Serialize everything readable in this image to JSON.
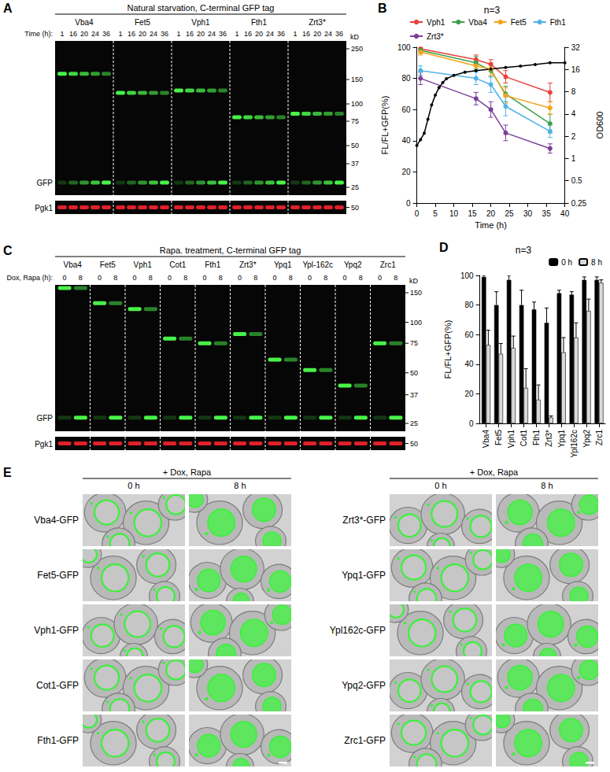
{
  "chart_data": [
    {
      "type": "line",
      "panel_label": "B",
      "title": "n=3",
      "x_label": "Time (h)",
      "y_label": "FL/FL+GFP(%)",
      "y2_label": "OD600",
      "xlim": [
        0,
        40
      ],
      "xticks": [
        0,
        5,
        10,
        15,
        20,
        25,
        30,
        35,
        40
      ],
      "ylim": [
        0,
        100
      ],
      "yticks": [
        0,
        20,
        40,
        60,
        80,
        100
      ],
      "y2lim": [
        0.25,
        32
      ],
      "y2ticks": [
        0.25,
        0.5,
        1,
        2,
        4,
        8,
        16,
        32
      ],
      "log": "y2",
      "grid": false,
      "legend": "top",
      "series": [
        {
          "name": "Vph1",
          "color": "#e8413a",
          "marker": "circle",
          "x": [
            1,
            16,
            20,
            24,
            36
          ],
          "values": [
            99,
            92,
            89,
            81,
            71
          ],
          "errors": [
            1,
            3,
            3,
            4,
            6
          ]
        },
        {
          "name": "Vba4",
          "color": "#3aa04a",
          "marker": "circle",
          "x": [
            1,
            16,
            20,
            24,
            36
          ],
          "values": [
            98,
            90,
            85,
            70,
            51
          ],
          "errors": [
            2,
            4,
            4,
            5,
            6
          ]
        },
        {
          "name": "Fet5",
          "color": "#f5a31a",
          "marker": "circle",
          "x": [
            1,
            16,
            20,
            24,
            36
          ],
          "values": [
            97,
            88,
            86,
            69,
            61
          ],
          "errors": [
            2,
            3,
            4,
            5,
            4
          ]
        },
        {
          "name": "Fth1",
          "color": "#4fb3e8",
          "marker": "circle",
          "x": [
            1,
            16,
            20,
            24,
            36
          ],
          "values": [
            85,
            80,
            76,
            62,
            46
          ],
          "errors": [
            3,
            4,
            5,
            6,
            4
          ]
        },
        {
          "name": "Zrt3*",
          "color": "#7b3f98",
          "marker": "circle",
          "x": [
            1,
            16,
            20,
            24,
            36
          ],
          "values": [
            80,
            67,
            60,
            45,
            35
          ],
          "errors": [
            4,
            4,
            5,
            5,
            3
          ]
        },
        {
          "name": "OD600",
          "color": "#000000",
          "marker": "circle",
          "axis": "y2",
          "x": [
            0,
            1,
            2,
            3,
            4,
            5,
            6,
            7,
            8,
            10,
            13,
            16,
            20,
            24,
            28,
            32,
            36,
            40
          ],
          "values": [
            1.5,
            1.8,
            2.2,
            3.4,
            5.3,
            7.2,
            9.1,
            10.6,
            12,
            13.3,
            14.7,
            15.4,
            16.2,
            17,
            17.8,
            18.7,
            19.7,
            19.7
          ]
        }
      ]
    },
    {
      "type": "bar",
      "panel_label": "D",
      "title": "n=3",
      "y_label": "FL/FL+GFP(%)",
      "categories": [
        "Vba4",
        "Fet5",
        "Vph1",
        "Cot1",
        "Fth1",
        "Zrt3*",
        "Ypq1",
        "Ypl162c",
        "Ypq2",
        "Zrc1"
      ],
      "ylim": [
        0,
        100
      ],
      "yticks": [
        0,
        20,
        40,
        60,
        80,
        100
      ],
      "grid": false,
      "legend": "top-right",
      "series": [
        {
          "name": "0 h",
          "color": "#000000",
          "values": [
            99,
            80,
            97,
            80,
            77,
            68,
            88,
            87,
            97,
            97
          ],
          "errors": [
            1,
            9,
            3,
            10,
            5,
            10,
            2,
            2,
            2,
            2
          ]
        },
        {
          "name": "8 h",
          "color": "#d9d9d9",
          "values": [
            53,
            47,
            51,
            24,
            16,
            4,
            48,
            58,
            76,
            95
          ],
          "errors": [
            10,
            7,
            8,
            13,
            10,
            1,
            10,
            10,
            8,
            2
          ]
        }
      ]
    }
  ],
  "figure": {
    "panel_A": {
      "label": "A",
      "header": "Natural starvation, C-terminal GFP tag",
      "lane_label": "Time (h):",
      "lanes": [
        "1",
        "16",
        "20",
        "24",
        "36"
      ],
      "proteins": [
        {
          "name": "Vba4",
          "fl_kD": 165
        },
        {
          "name": "Fet5",
          "fl_kD": 120
        },
        {
          "name": "Vph1",
          "fl_kD": 125
        },
        {
          "name": "Fth1",
          "fl_kD": 80
        },
        {
          "name": "Zrt3*",
          "fl_kD": 85
        }
      ],
      "kD_label": "kD",
      "markers": [
        250,
        150,
        100,
        75,
        50,
        37,
        25
      ],
      "gfp_label": "GFP",
      "gfp_kD": 27,
      "loading_label": "Pgk1",
      "loading_marker": 50
    },
    "panel_C": {
      "label": "C",
      "header": "Rapa. treatment, C-terminal GFP tag",
      "lane_label": "Dox, Rapa (h):",
      "lanes": [
        "0",
        "8"
      ],
      "proteins": [
        {
          "name": "Vba4",
          "fl_kD": 160
        },
        {
          "name": "Fet5",
          "fl_kD": 130
        },
        {
          "name": "Vph1",
          "fl_kD": 120
        },
        {
          "name": "Cot1",
          "fl_kD": 80
        },
        {
          "name": "Fth1",
          "fl_kD": 75
        },
        {
          "name": "Zrt3*",
          "fl_kD": 85
        },
        {
          "name": "Ypq1",
          "fl_kD": 60
        },
        {
          "name": "Ypl-162c",
          "fl_kD": 52
        },
        {
          "name": "Ypq2",
          "fl_kD": 42
        },
        {
          "name": "Zrc1",
          "fl_kD": 75
        }
      ],
      "kD_label": "kD",
      "markers": [
        150,
        100,
        75,
        50,
        37,
        25
      ],
      "gfp_label": "GFP",
      "gfp_kD": 27,
      "loading_label": "Pgk1",
      "loading_marker": 50
    },
    "panel_E": {
      "label": "E",
      "treatment": "+ Dox, Rapa",
      "times": [
        "0 h",
        "8 h"
      ],
      "columns": [
        [
          "Vba4-GFP",
          "Fet5-GFP",
          "Vph1-GFP",
          "Cot1-GFP",
          "Fth1-GFP"
        ],
        [
          "Zrt3*-GFP",
          "Ypq1-GFP",
          "Ypl162c-GFP",
          "Ypq2-GFP",
          "Zrc1-GFP"
        ]
      ]
    }
  }
}
